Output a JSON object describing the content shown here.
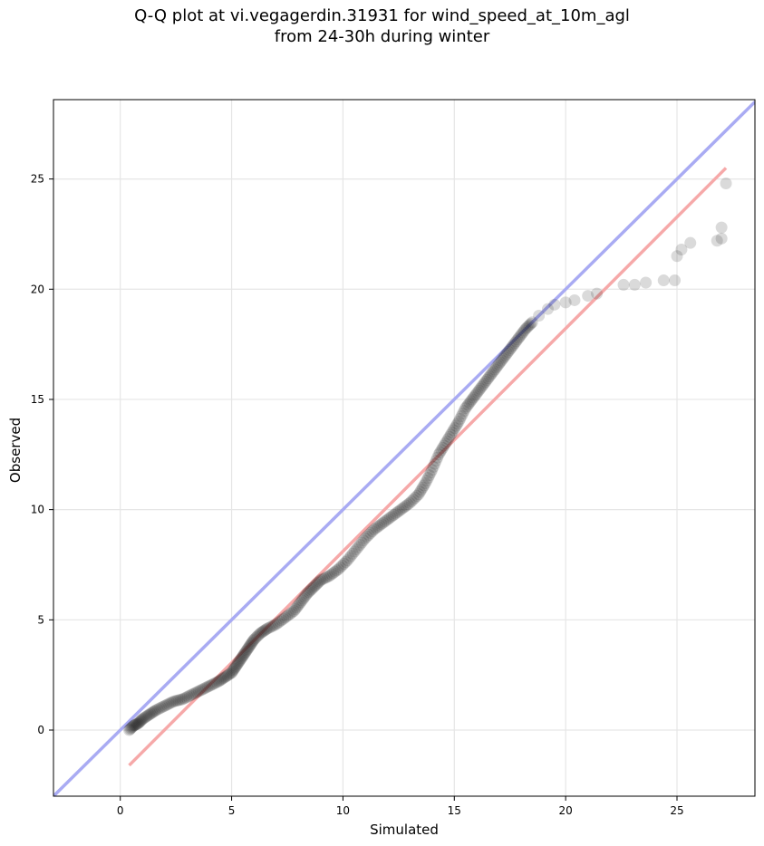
{
  "chart_data": {
    "type": "scatter",
    "title_line1": "Q-Q plot at vi.vegagerdin.31931 for wind_speed_at_10m_agl",
    "title_line2": "from 24-30h during winter",
    "xlabel": "Simulated",
    "ylabel": "Observed",
    "xlim": [
      -3,
      28.5
    ],
    "ylim": [
      -3,
      28.6
    ],
    "xticks": [
      0,
      5,
      10,
      15,
      20,
      25
    ],
    "yticks": [
      0,
      5,
      10,
      15,
      20,
      25
    ],
    "xtick_labels": [
      "0",
      "5",
      "10",
      "15",
      "20",
      "25"
    ],
    "ytick_labels": [
      "0",
      "5",
      "10",
      "15",
      "20",
      "25"
    ],
    "grid": true,
    "colors": {
      "points": "#1a1a1a",
      "identity_line": "#a9abf3",
      "fit_line": "#f6a9a9",
      "grid": "#e6e6e6"
    },
    "identity_line": {
      "x": [
        -3,
        28.5
      ],
      "y": [
        -3,
        28.5
      ]
    },
    "fit_line": {
      "x": [
        0.4,
        27.2
      ],
      "y": [
        -1.6,
        25.5
      ]
    },
    "points_dense": {
      "x": [
        0.4,
        0.6,
        0.8,
        1.0,
        1.3,
        1.6,
        2.0,
        2.4,
        2.8,
        3.2,
        3.6,
        4.0,
        4.4,
        4.7,
        5.0,
        5.2,
        5.4,
        5.6,
        5.8,
        6.0,
        6.3,
        6.6,
        7.0,
        7.4,
        7.8,
        8.1,
        8.4,
        8.7,
        9.0,
        9.4,
        9.8,
        10.2,
        10.6,
        11.0,
        11.4,
        11.8,
        12.2,
        12.6,
        13.0,
        13.4,
        13.7,
        14.0,
        14.3,
        14.6,
        14.9,
        15.2,
        15.5,
        15.8,
        16.1,
        16.4,
        16.7,
        17.0,
        17.3,
        17.6,
        17.9,
        18.2,
        18.5
      ],
      "y": [
        0.0,
        0.2,
        0.3,
        0.5,
        0.7,
        0.9,
        1.1,
        1.3,
        1.4,
        1.6,
        1.8,
        2.0,
        2.2,
        2.4,
        2.6,
        2.9,
        3.2,
        3.5,
        3.8,
        4.1,
        4.4,
        4.6,
        4.8,
        5.1,
        5.4,
        5.8,
        6.2,
        6.5,
        6.8,
        7.0,
        7.3,
        7.7,
        8.2,
        8.7,
        9.1,
        9.4,
        9.7,
        10.0,
        10.3,
        10.7,
        11.2,
        11.8,
        12.5,
        13.0,
        13.5,
        14.0,
        14.6,
        15.0,
        15.4,
        15.8,
        16.2,
        16.6,
        17.0,
        17.4,
        17.8,
        18.2,
        18.5
      ]
    },
    "points_sparse": {
      "x": [
        18.8,
        19.2,
        19.5,
        20.0,
        20.4,
        21.0,
        21.4,
        22.6,
        23.1,
        23.6,
        24.4,
        24.9,
        25.0,
        25.2,
        25.6,
        26.8,
        27.0,
        27.0,
        27.2
      ],
      "y": [
        18.8,
        19.1,
        19.3,
        19.4,
        19.5,
        19.7,
        19.8,
        20.2,
        20.2,
        20.3,
        20.4,
        20.4,
        21.5,
        21.8,
        22.1,
        22.2,
        22.3,
        22.8,
        24.8
      ]
    }
  }
}
